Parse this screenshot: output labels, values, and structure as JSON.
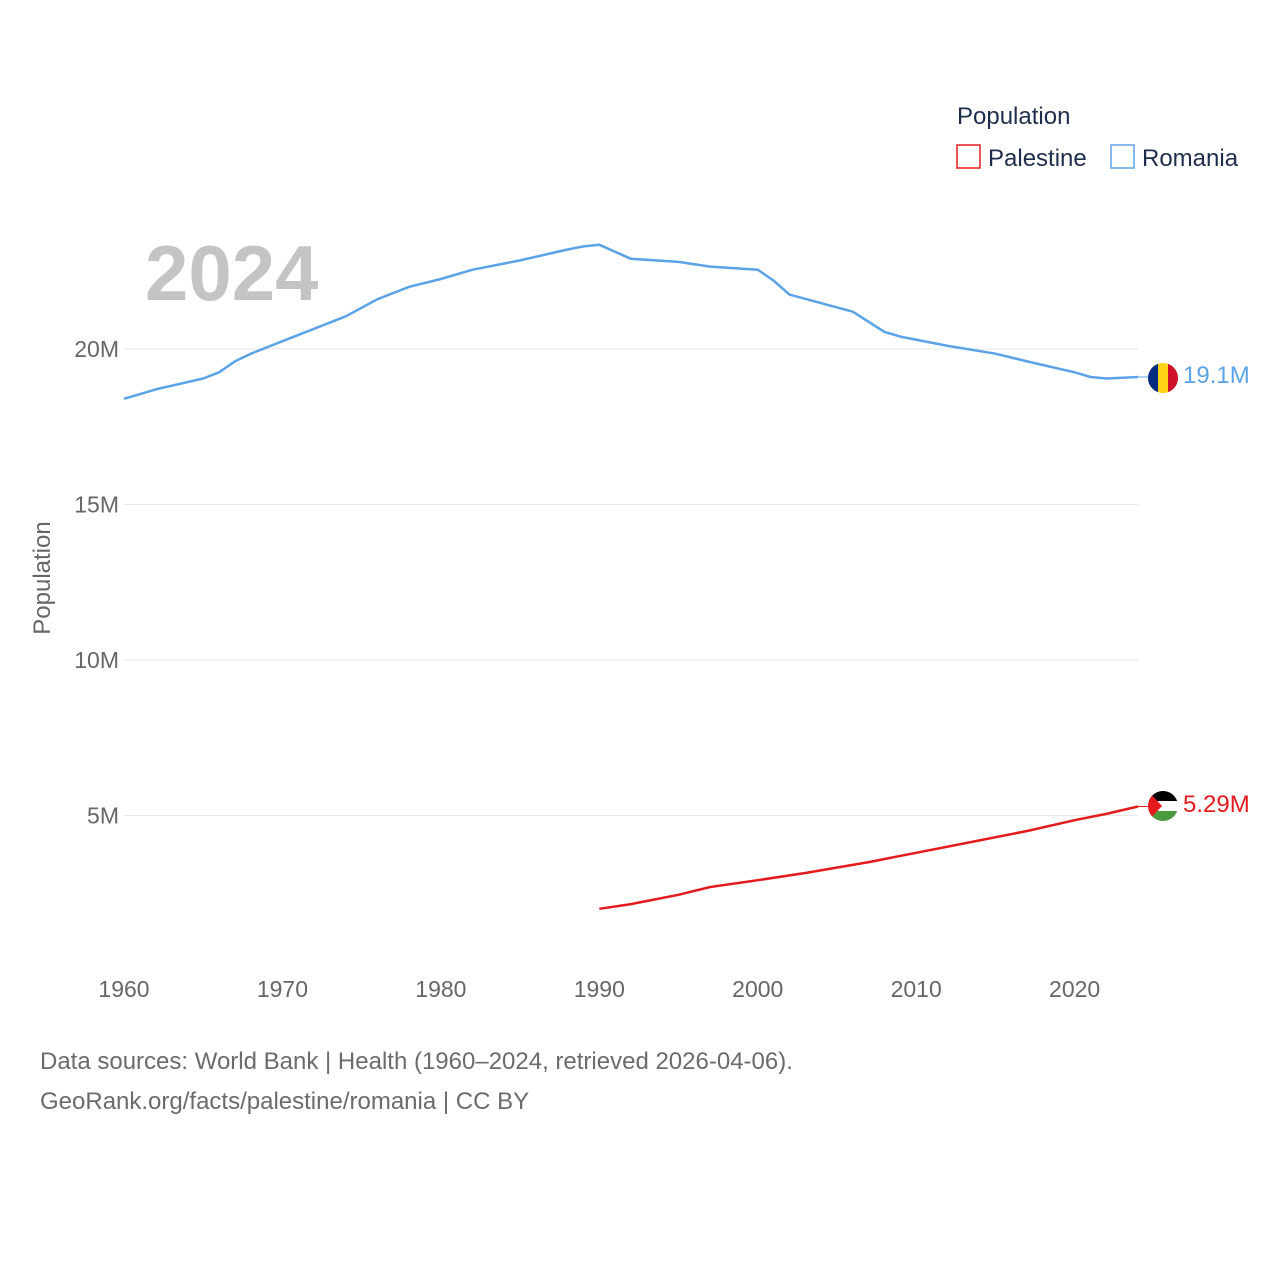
{
  "chart_data": {
    "type": "line",
    "title": "",
    "year_display": "2024",
    "ylabel": "Population",
    "xlabel": "",
    "xlim": [
      1960,
      2024
    ],
    "ylim": [
      0,
      25000000
    ],
    "x_ticks": [
      "1960",
      "1970",
      "1980",
      "1990",
      "2000",
      "2010",
      "2020"
    ],
    "x_tick_values": [
      1960,
      1970,
      1980,
      1990,
      2000,
      2010,
      2020
    ],
    "y_ticks": [
      "5M",
      "10M",
      "15M",
      "20M"
    ],
    "y_tick_values": [
      5000000,
      10000000,
      15000000,
      20000000
    ],
    "legend": {
      "title": "Population",
      "position": "top-right",
      "entries": [
        "Palestine",
        "Romania"
      ]
    },
    "series": [
      {
        "name": "Palestine",
        "color": "#e41a1c",
        "end_label": "5.29M",
        "flag": "palestine-flag-icon",
        "points": [
          [
            1990,
            2000000
          ],
          [
            1992,
            2150000
          ],
          [
            1995,
            2450000
          ],
          [
            1997,
            2700000
          ],
          [
            2000,
            2920000
          ],
          [
            2003,
            3150000
          ],
          [
            2007,
            3500000
          ],
          [
            2010,
            3800000
          ],
          [
            2014,
            4200000
          ],
          [
            2017,
            4500000
          ],
          [
            2020,
            4850000
          ],
          [
            2022,
            5050000
          ],
          [
            2024,
            5290000
          ]
        ]
      },
      {
        "name": "Romania",
        "color": "#5ba3e6",
        "end_label": "19.1M",
        "flag": "romania-flag-icon",
        "points": [
          [
            1960,
            18400000
          ],
          [
            1962,
            18700000
          ],
          [
            1965,
            19050000
          ],
          [
            1966,
            19250000
          ],
          [
            1967,
            19600000
          ],
          [
            1968,
            19850000
          ],
          [
            1970,
            20250000
          ],
          [
            1972,
            20650000
          ],
          [
            1974,
            21050000
          ],
          [
            1976,
            21600000
          ],
          [
            1978,
            22000000
          ],
          [
            1980,
            22250000
          ],
          [
            1982,
            22550000
          ],
          [
            1985,
            22850000
          ],
          [
            1988,
            23200000
          ],
          [
            1989,
            23300000
          ],
          [
            1990,
            23350000
          ],
          [
            1992,
            22900000
          ],
          [
            1995,
            22800000
          ],
          [
            1997,
            22650000
          ],
          [
            2000,
            22550000
          ],
          [
            2001,
            22200000
          ],
          [
            2002,
            21750000
          ],
          [
            2006,
            21200000
          ],
          [
            2008,
            20550000
          ],
          [
            2009,
            20400000
          ],
          [
            2012,
            20100000
          ],
          [
            2015,
            19850000
          ],
          [
            2017,
            19600000
          ],
          [
            2020,
            19250000
          ],
          [
            2021,
            19100000
          ],
          [
            2022,
            19050000
          ],
          [
            2024,
            19100000
          ]
        ]
      }
    ]
  },
  "footer": {
    "sources": "Data sources: World Bank | Health (1960–2024, retrieved 2026-04-06).",
    "credit": "GeoRank.org/facts/palestine/romania | CC BY"
  }
}
